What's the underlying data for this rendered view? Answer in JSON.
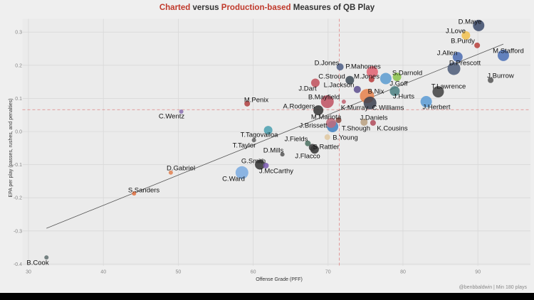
{
  "chart_data": {
    "type": "scatter",
    "title_parts": [
      {
        "text": "Charted",
        "color": "#c0392b"
      },
      {
        "text": " versus ",
        "color": "#333333"
      },
      {
        "text": "Production-based",
        "color": "#c0392b"
      },
      {
        "text": " Measures of QB Play",
        "color": "#333333"
      }
    ],
    "xlabel": "Offense Grade (PFF)",
    "ylabel": "EPA per play (passes, rushes, and penalties)",
    "caption": "@benbbaldwin | Min 180 plays",
    "xlim": [
      29,
      96
    ],
    "ylim": [
      -0.405,
      0.34
    ],
    "x_ticks": [
      30,
      40,
      50,
      60,
      70,
      80,
      90
    ],
    "y_ticks": [
      0.3,
      0.2,
      0.1,
      0.0,
      -0.1,
      -0.2,
      -0.3,
      -0.4
    ],
    "y_tick_labels": [
      "0.3",
      "0.2",
      "0.1",
      "0.0",
      "-0.1",
      "-0.2",
      "-0.3",
      "-0.4"
    ],
    "grid": true,
    "reference_lines": {
      "x_mean": 71.5,
      "y_mean": 0.066,
      "color": "#e08080",
      "style": "dashed"
    },
    "trend_line": {
      "x": [
        32.4,
        93.4
      ],
      "y": [
        -0.292,
        0.264
      ]
    },
    "points": [
      {
        "name": "D.Maye",
        "x": 90.1,
        "y": 0.32,
        "color": "#3b4a6b",
        "size": 8
      },
      {
        "name": "J.Love",
        "x": 88.4,
        "y": 0.29,
        "color": "#f2c14e",
        "size": 6
      },
      {
        "name": "B.Purdy",
        "x": 89.9,
        "y": 0.26,
        "color": "#b8403a",
        "size": 4
      },
      {
        "name": "M.Stafford",
        "x": 93.4,
        "y": 0.23,
        "color": "#4a6fb5",
        "size": 8
      },
      {
        "name": "J.Allen",
        "x": 87.3,
        "y": 0.225,
        "color": "#4a6bb0",
        "size": 7
      },
      {
        "name": "D.Prescott",
        "x": 86.8,
        "y": 0.19,
        "color": "#4b5a78",
        "size": 9
      },
      {
        "name": "J.Burrow",
        "x": 91.7,
        "y": 0.155,
        "color": "#555555",
        "size": 4
      },
      {
        "name": "T.Lawrence",
        "x": 84.7,
        "y": 0.12,
        "color": "#3f3f3f",
        "size": 8
      },
      {
        "name": "J.Herbert",
        "x": 83.1,
        "y": 0.09,
        "color": "#5b9bd5",
        "size": 8
      },
      {
        "name": "D.Jones",
        "x": 71.6,
        "y": 0.195,
        "color": "#4b5d85",
        "size": 5
      },
      {
        "name": "P.Mahomes",
        "x": 75.9,
        "y": 0.18,
        "color": "#e06070",
        "size": 8
      },
      {
        "name": "S.Darnold",
        "x": 79.2,
        "y": 0.165,
        "color": "#8bc34a",
        "size": 6
      },
      {
        "name": "J.Goff",
        "x": 77.7,
        "y": 0.16,
        "color": "#5a9bd0",
        "size": 8
      },
      {
        "name": "C.Stroud",
        "x": 72.9,
        "y": 0.155,
        "color": "#3c4a55",
        "size": 6
      },
      {
        "name": "M.Jones",
        "x": 75.8,
        "y": 0.157,
        "color": "#b83a3a",
        "size": 4
      },
      {
        "name": "J.Dart",
        "x": 68.3,
        "y": 0.147,
        "color": "#c0505a",
        "size": 6
      },
      {
        "name": "L.Jackson",
        "x": 73.9,
        "y": 0.127,
        "color": "#5c4d8e",
        "size": 5
      },
      {
        "name": "B.Nix",
        "x": 75.2,
        "y": 0.107,
        "color": "#e8804a",
        "size": 10
      },
      {
        "name": "J.Hurts",
        "x": 78.9,
        "y": 0.122,
        "color": "#4a7f80",
        "size": 7
      },
      {
        "name": "B.Mayfield",
        "x": 69.9,
        "y": 0.09,
        "color": "#c05060",
        "size": 9
      },
      {
        "name": "K.Murray",
        "x": 72.1,
        "y": 0.09,
        "color": "#c06070",
        "size": 3
      },
      {
        "name": "C.Williams",
        "x": 75.6,
        "y": 0.086,
        "color": "#3a3f4f",
        "size": 9
      },
      {
        "name": "A.Rodgers",
        "x": 68.7,
        "y": 0.064,
        "color": "#333333",
        "size": 7
      },
      {
        "name": "M.Mariota",
        "x": 71.4,
        "y": 0.034,
        "color": "#8a4a40",
        "size": 4
      },
      {
        "name": "J.Brissett",
        "x": 70.4,
        "y": 0.026,
        "color": "#c06a7a",
        "size": 7
      },
      {
        "name": "T.Shough",
        "x": 70.6,
        "y": 0.015,
        "color": "#3f7fc0",
        "size": 8
      },
      {
        "name": "J.Daniels",
        "x": 74.8,
        "y": 0.028,
        "color": "#b8a080",
        "size": 5
      },
      {
        "name": "K.Cousins",
        "x": 76.0,
        "y": 0.026,
        "color": "#b04a5a",
        "size": 4
      },
      {
        "name": "B.Young",
        "x": 69.9,
        "y": -0.017,
        "color": "#e0c8a0",
        "size": 4
      },
      {
        "name": "T.Tagovailoa",
        "x": 62.0,
        "y": 0.004,
        "color": "#4aa0b0",
        "size": 6
      },
      {
        "name": "T.Taylor",
        "x": 60.1,
        "y": -0.026,
        "color": "#606060",
        "size": 3
      },
      {
        "name": "J.Fields",
        "x": 67.3,
        "y": -0.036,
        "color": "#4a7060",
        "size": 4
      },
      {
        "name": "S.Rattler",
        "x": 67.9,
        "y": -0.048,
        "color": "#3a3a3a",
        "size": 5
      },
      {
        "name": "J.Flacco",
        "x": 68.2,
        "y": -0.054,
        "color": "#333333",
        "size": 6
      },
      {
        "name": "D.Mills",
        "x": 63.9,
        "y": -0.069,
        "color": "#555555",
        "size": 3
      },
      {
        "name": "G.Smith",
        "x": 60.9,
        "y": -0.1,
        "color": "#333333",
        "size": 7
      },
      {
        "name": "J.McCarthy",
        "x": 61.7,
        "y": -0.103,
        "color": "#7a5ab0",
        "size": 4
      },
      {
        "name": "C.Ward",
        "x": 58.5,
        "y": -0.124,
        "color": "#7aaae0",
        "size": 9
      },
      {
        "name": "D.Gabriel",
        "x": 49.0,
        "y": -0.124,
        "color": "#e08050",
        "size": 3
      },
      {
        "name": "S.Sanders",
        "x": 44.1,
        "y": -0.187,
        "color": "#e07040",
        "size": 3
      },
      {
        "name": "C.Wentz",
        "x": 50.4,
        "y": 0.06,
        "color": "#8a70b0",
        "size": 3
      },
      {
        "name": "M.Penix",
        "x": 59.2,
        "y": 0.084,
        "color": "#b04040",
        "size": 4
      },
      {
        "name": "B.Cook",
        "x": 32.4,
        "y": -0.38,
        "color": "#607070",
        "size": 3
      }
    ]
  }
}
